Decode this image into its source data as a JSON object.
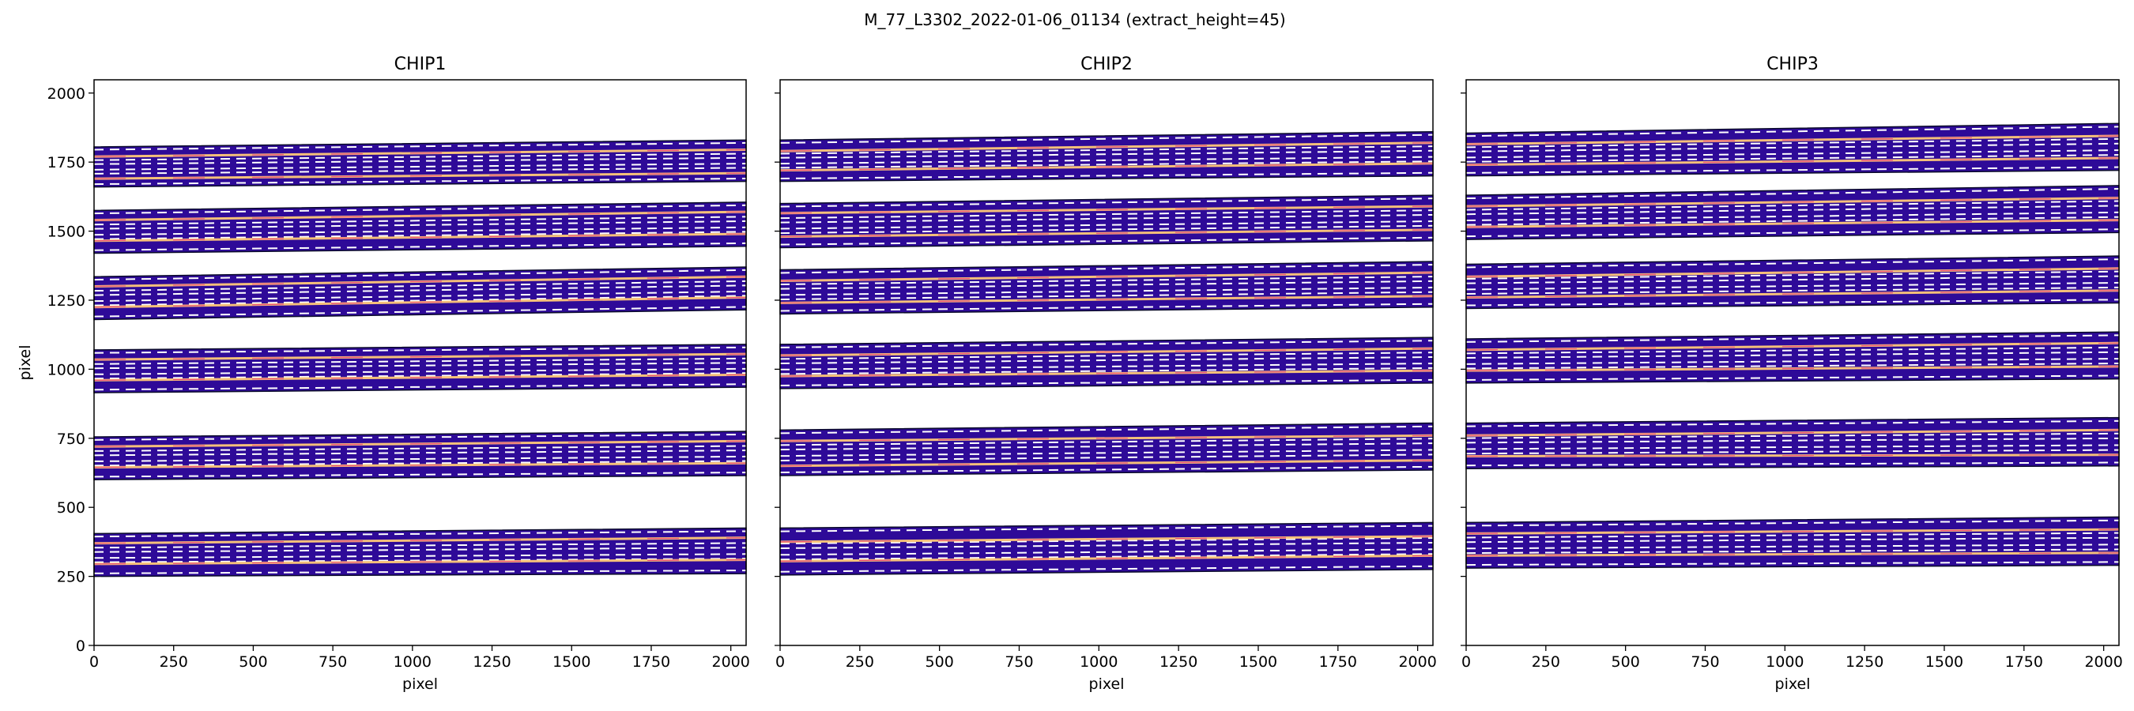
{
  "figure": {
    "suptitle": "M_77_L3302_2022-01-06_01134  (extract_height=45)"
  },
  "chart_data": [
    {
      "type": "heatmap",
      "title": "CHIP1",
      "xlabel": "pixel",
      "ylabel": "pixel",
      "xlim": [
        0,
        2048
      ],
      "ylim": [
        0,
        2048
      ],
      "xticks": [
        0,
        250,
        500,
        750,
        1000,
        1250,
        1500,
        1750,
        2000
      ],
      "yticks": [
        0,
        250,
        500,
        750,
        1000,
        1250,
        1500,
        1750,
        2000
      ],
      "orders": [
        {
          "bottom": [
            250,
            260
          ],
          "top": [
            405,
            425
          ],
          "trace_lines": [
            [
              295,
              310
            ],
            [
              370,
              390
            ]
          ]
        },
        {
          "bottom": [
            600,
            615
          ],
          "top": [
            755,
            775
          ],
          "trace_lines": [
            [
              645,
              660
            ],
            [
              720,
              740
            ]
          ]
        },
        {
          "bottom": [
            915,
            935
          ],
          "top": [
            1070,
            1090
          ],
          "trace_lines": [
            [
              960,
              980
            ],
            [
              1035,
              1055
            ]
          ]
        },
        {
          "bottom": [
            1180,
            1215
          ],
          "top": [
            1335,
            1370
          ],
          "trace_lines": [
            [
              1225,
              1260
            ],
            [
              1300,
              1335
            ]
          ]
        },
        {
          "bottom": [
            1420,
            1445
          ],
          "top": [
            1575,
            1605
          ],
          "trace_lines": [
            [
              1465,
              1490
            ],
            [
              1540,
              1570
            ]
          ]
        },
        {
          "bottom": [
            1660,
            1680
          ],
          "top": [
            1805,
            1830
          ],
          "trace_lines": [
            [
              1690,
              1710
            ],
            [
              1770,
              1795
            ]
          ]
        }
      ],
      "colors": {
        "order_fill": "#2e0a98",
        "trace_line": "#f5c07a",
        "center_line": "#e84f7a",
        "extraction_edge": "#ffffff"
      }
    },
    {
      "type": "heatmap",
      "title": "CHIP2",
      "xlabel": "pixel",
      "ylabel": "",
      "xlim": [
        0,
        2048
      ],
      "ylim": [
        0,
        2048
      ],
      "xticks": [
        0,
        250,
        500,
        750,
        1000,
        1250,
        1500,
        1750,
        2000
      ],
      "yticks": [
        0,
        250,
        500,
        750,
        1000,
        1250,
        1500,
        1750,
        2000
      ],
      "orders": [
        {
          "bottom": [
            255,
            275
          ],
          "top": [
            425,
            445
          ],
          "trace_lines": [
            [
              305,
              325
            ],
            [
              375,
              395
            ]
          ]
        },
        {
          "bottom": [
            615,
            635
          ],
          "top": [
            780,
            805
          ],
          "trace_lines": [
            [
              650,
              670
            ],
            [
              740,
              760
            ]
          ]
        },
        {
          "bottom": [
            930,
            950
          ],
          "top": [
            1090,
            1115
          ],
          "trace_lines": [
            [
              975,
              995
            ],
            [
              1050,
              1075
            ]
          ]
        },
        {
          "bottom": [
            1200,
            1225
          ],
          "top": [
            1360,
            1390
          ],
          "trace_lines": [
            [
              1240,
              1265
            ],
            [
              1320,
              1350
            ]
          ]
        },
        {
          "bottom": [
            1440,
            1465
          ],
          "top": [
            1600,
            1630
          ],
          "trace_lines": [
            [
              1480,
              1505
            ],
            [
              1565,
              1590
            ]
          ]
        },
        {
          "bottom": [
            1680,
            1700
          ],
          "top": [
            1830,
            1860
          ],
          "trace_lines": [
            [
              1720,
              1745
            ],
            [
              1790,
              1820
            ]
          ]
        }
      ],
      "colors": {
        "order_fill": "#2e0a98",
        "trace_line": "#f5c07a",
        "center_line": "#e84f7a",
        "extraction_edge": "#ffffff"
      }
    },
    {
      "type": "heatmap",
      "title": "CHIP3",
      "xlabel": "pixel",
      "ylabel": "",
      "xlim": [
        0,
        2048
      ],
      "ylim": [
        0,
        2048
      ],
      "xticks": [
        0,
        250,
        500,
        750,
        1000,
        1250,
        1500,
        1750,
        2000
      ],
      "yticks": [
        0,
        250,
        500,
        750,
        1000,
        1250,
        1500,
        1750,
        2000
      ],
      "orders": [
        {
          "bottom": [
            280,
            290
          ],
          "top": [
            445,
            465
          ],
          "trace_lines": [
            [
              325,
              335
            ],
            [
              405,
              420
            ]
          ]
        },
        {
          "bottom": [
            640,
            650
          ],
          "top": [
            805,
            825
          ],
          "trace_lines": [
            [
              685,
              690
            ],
            [
              760,
              780
            ]
          ]
        },
        {
          "bottom": [
            950,
            965
          ],
          "top": [
            1110,
            1135
          ],
          "trace_lines": [
            [
              995,
              1010
            ],
            [
              1070,
              1095
            ]
          ]
        },
        {
          "bottom": [
            1220,
            1240
          ],
          "top": [
            1380,
            1410
          ],
          "trace_lines": [
            [
              1260,
              1285
            ],
            [
              1335,
              1365
            ]
          ]
        },
        {
          "bottom": [
            1470,
            1495
          ],
          "top": [
            1630,
            1665
          ],
          "trace_lines": [
            [
              1515,
              1540
            ],
            [
              1590,
              1620
            ]
          ]
        },
        {
          "bottom": [
            1700,
            1720
          ],
          "top": [
            1855,
            1890
          ],
          "trace_lines": [
            [
              1740,
              1765
            ],
            [
              1815,
              1845
            ]
          ]
        }
      ],
      "colors": {
        "order_fill": "#2e0a98",
        "trace_line": "#f5c07a",
        "center_line": "#e84f7a",
        "extraction_edge": "#ffffff"
      }
    }
  ]
}
